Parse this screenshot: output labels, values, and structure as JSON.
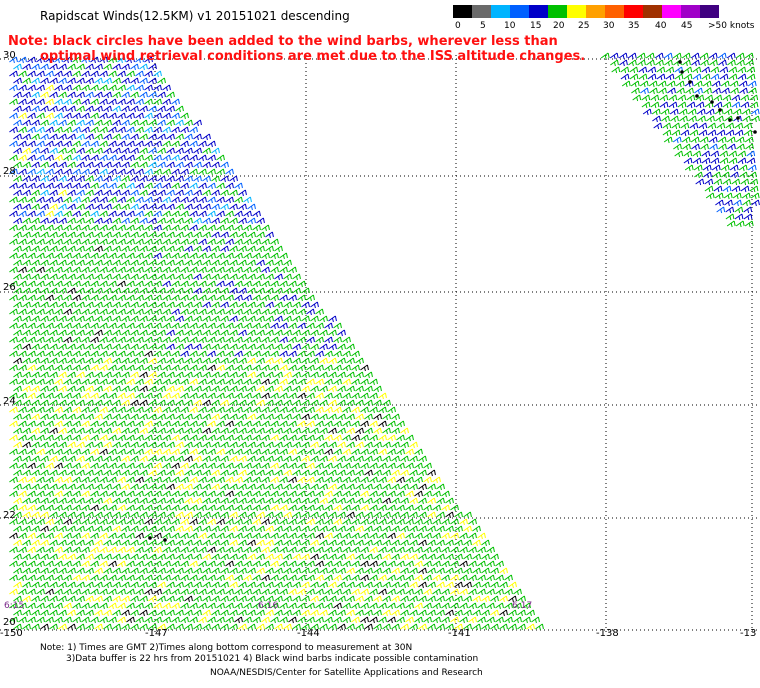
{
  "title": "Rapidscat Winds(12.5KM) v1 20151021 descending",
  "notice": {
    "line1": "Note: black circles have been added to the wind barbs, wherever less than",
    "line2": "optimal wind retrieval conditions are met due to the ISS altitude changes."
  },
  "legend": {
    "colors": [
      "#000000",
      "#6a6a6a",
      "#00b4ff",
      "#0060ff",
      "#0000c8",
      "#00c000",
      "#ffff00",
      "#ffa000",
      "#ff6000",
      "#ff0000",
      "#a03000",
      "#ff00ff",
      "#a000c8",
      "#400080"
    ],
    "labels": [
      "0",
      "5",
      "10",
      "15",
      "20",
      "25",
      "30",
      "35",
      "40",
      "45",
      ">50 knots"
    ]
  },
  "axes": {
    "lat_labels": [
      "30",
      "28",
      "26",
      "24",
      "22",
      "20"
    ],
    "lon_labels": [
      "-150",
      "-147",
      "-144",
      "-141",
      "-138",
      "-13"
    ]
  },
  "time_labels": [
    "6:15",
    "6:16",
    "6:17"
  ],
  "footer": {
    "line1": "Note: 1) Times are GMT 2)Times along bottom correspond to measurement at 30N",
    "line2": "3)Data buffer is 22 hrs from 20151021 4) Black wind barbs indicate possible contamination",
    "line3": "NOAA/NESDIS/Center for Satellite Applications and Research"
  }
}
